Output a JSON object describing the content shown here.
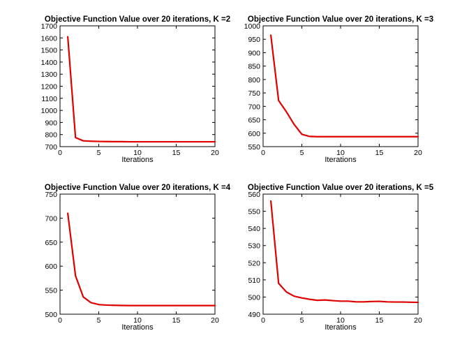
{
  "chart_data": [
    {
      "type": "line",
      "title": "Objective Function Value over 20 iterations, K =2",
      "xlabel": "Iterations",
      "ylabel": "",
      "xlim": [
        0,
        20
      ],
      "ylim": [
        700,
        1700
      ],
      "xticks": [
        0,
        5,
        10,
        15,
        20
      ],
      "yticks": [
        700,
        800,
        900,
        1000,
        1100,
        1200,
        1300,
        1400,
        1500,
        1600,
        1700
      ],
      "x": [
        1,
        2,
        3,
        4,
        5,
        6,
        7,
        8,
        9,
        10,
        11,
        12,
        13,
        14,
        15,
        16,
        17,
        18,
        19,
        20
      ],
      "series": [
        {
          "color": "#e00000",
          "values": [
            1610,
            775,
            748,
            745,
            743,
            742,
            741,
            741,
            740,
            740,
            740,
            740,
            740,
            740,
            740,
            740,
            740,
            740,
            740,
            740
          ]
        }
      ],
      "grid": false
    },
    {
      "type": "line",
      "title": "Objective Function Value over 20 iterations, K =3",
      "xlabel": "Iterations",
      "ylabel": "",
      "xlim": [
        0,
        20
      ],
      "ylim": [
        550,
        1000
      ],
      "xticks": [
        0,
        5,
        10,
        15,
        20
      ],
      "yticks": [
        550,
        600,
        650,
        700,
        750,
        800,
        850,
        900,
        950,
        1000
      ],
      "x": [
        1,
        2,
        3,
        4,
        5,
        6,
        7,
        8,
        9,
        10,
        11,
        12,
        13,
        14,
        15,
        16,
        17,
        18,
        19,
        20
      ],
      "series": [
        {
          "color": "#e00000",
          "values": [
            965,
            722,
            680,
            633,
            596,
            588,
            587,
            587,
            587,
            587,
            587,
            587,
            587,
            587,
            587,
            587,
            587,
            587,
            587,
            587
          ]
        }
      ],
      "grid": false
    },
    {
      "type": "line",
      "title": "Objective Function Value over 20 iterations, K =4",
      "xlabel": "Iterations",
      "ylabel": "",
      "xlim": [
        0,
        20
      ],
      "ylim": [
        500,
        750
      ],
      "xticks": [
        0,
        5,
        10,
        15,
        20
      ],
      "yticks": [
        500,
        550,
        600,
        650,
        700,
        750
      ],
      "x": [
        1,
        2,
        3,
        4,
        5,
        6,
        7,
        8,
        9,
        10,
        11,
        12,
        13,
        14,
        15,
        16,
        17,
        18,
        19,
        20
      ],
      "series": [
        {
          "color": "#e00000",
          "values": [
            710,
            580,
            536,
            524,
            520,
            519,
            518.5,
            518.2,
            518,
            518,
            518,
            518,
            518,
            518,
            518,
            518,
            518,
            518,
            518,
            518
          ]
        }
      ],
      "grid": false
    },
    {
      "type": "line",
      "title": "Objective Function Value over 20 iterations, K =5",
      "xlabel": "Iterations",
      "ylabel": "",
      "xlim": [
        0,
        20
      ],
      "ylim": [
        490,
        560
      ],
      "xticks": [
        0,
        5,
        10,
        15,
        20
      ],
      "yticks": [
        490,
        500,
        510,
        520,
        530,
        540,
        550,
        560
      ],
      "x": [
        1,
        2,
        3,
        4,
        5,
        6,
        7,
        8,
        9,
        10,
        11,
        12,
        13,
        14,
        15,
        16,
        17,
        18,
        19,
        20
      ],
      "series": [
        {
          "color": "#e00000",
          "values": [
            556,
            508,
            503,
            500.5,
            499.5,
            498.7,
            498.1,
            498.3,
            497.9,
            497.6,
            497.6,
            497.2,
            497.2,
            497.4,
            497.5,
            497.2,
            497.1,
            497.1,
            497.0,
            496.9
          ]
        }
      ],
      "grid": false
    }
  ]
}
